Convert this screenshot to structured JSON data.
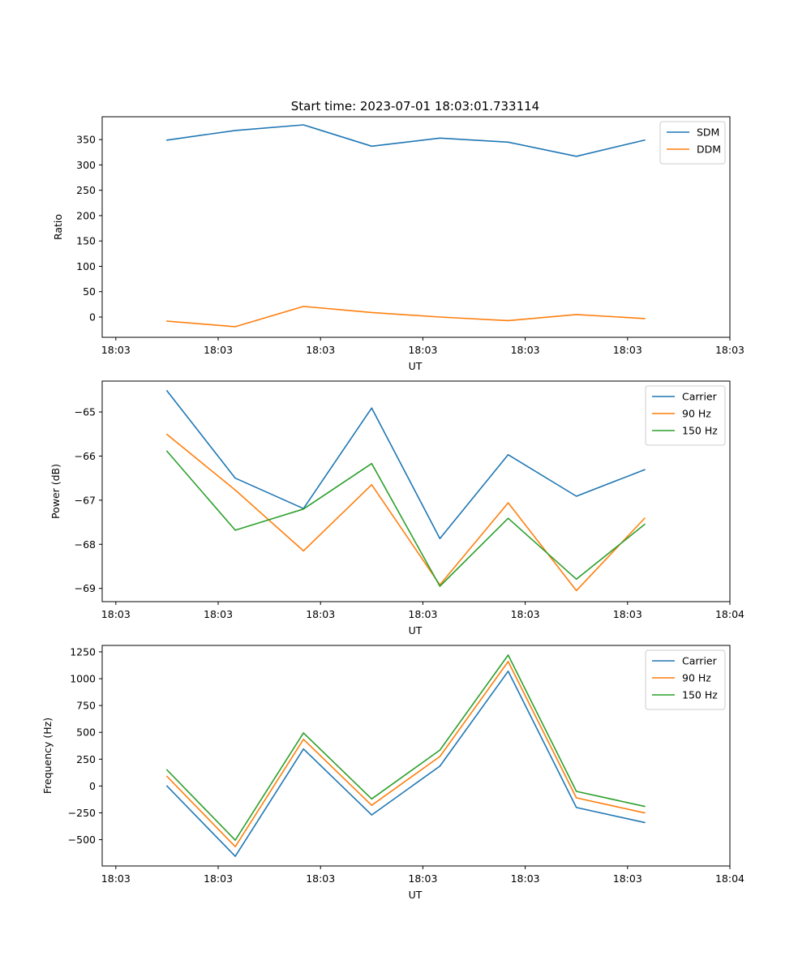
{
  "figure": {
    "title": "Start time: 2023-07-01 18:03:01.733114"
  },
  "colors": {
    "blue": "#1f77b4",
    "orange": "#ff7f0e",
    "green": "#2ca02c"
  },
  "chart_data": [
    {
      "type": "line",
      "xlabel": "UT",
      "ylabel": "Ratio",
      "xlim": [
        -0.2,
        9.0
      ],
      "ylim": [
        -40,
        395
      ],
      "x": [
        0.75,
        1.75,
        2.75,
        3.75,
        4.75,
        5.75,
        6.75,
        7.75
      ],
      "xticks": [
        0,
        1.5,
        3,
        4.5,
        6,
        7.5,
        9
      ],
      "xtick_labels": [
        "18:03",
        "18:03",
        "18:03",
        "18:03",
        "18:03",
        "18:03",
        "18:03"
      ],
      "yticks": [
        0,
        50,
        100,
        150,
        200,
        250,
        300,
        350
      ],
      "ytick_labels": [
        "0",
        "50",
        "100",
        "150",
        "200",
        "250",
        "300",
        "350"
      ],
      "legend": "top-right",
      "series": [
        {
          "name": "SDM",
          "color": "blue",
          "values": [
            349,
            368,
            379,
            337,
            353,
            345,
            317,
            349
          ]
        },
        {
          "name": "DDM",
          "color": "orange",
          "values": [
            -8,
            -19,
            21,
            9,
            0,
            -7,
            5,
            -3
          ]
        }
      ]
    },
    {
      "type": "line",
      "xlabel": "UT",
      "ylabel": "Power (dB)",
      "xlim": [
        -0.2,
        9.0
      ],
      "ylim": [
        -69.3,
        -64.3
      ],
      "x": [
        0.75,
        1.75,
        2.75,
        3.75,
        4.75,
        5.75,
        6.75,
        7.75
      ],
      "xticks": [
        0,
        1.5,
        3,
        4.5,
        6,
        7.5,
        9
      ],
      "xtick_labels": [
        "18:03",
        "18:03",
        "18:03",
        "18:03",
        "18:03",
        "18:03",
        "18:04"
      ],
      "yticks": [
        -69,
        -68,
        -67,
        -66,
        -65
      ],
      "ytick_labels": [
        "−69",
        "−68",
        "−67",
        "−66",
        "−65"
      ],
      "legend": "top-right",
      "series": [
        {
          "name": "Carrier",
          "color": "blue",
          "values": [
            -64.52,
            -66.5,
            -67.19,
            -64.91,
            -67.87,
            -65.97,
            -66.91,
            -66.31
          ]
        },
        {
          "name": "90 Hz",
          "color": "orange",
          "values": [
            -65.51,
            -66.77,
            -68.15,
            -66.65,
            -68.92,
            -67.06,
            -69.05,
            -67.41
          ]
        },
        {
          "name": "150 Hz",
          "color": "green",
          "values": [
            -65.89,
            -67.68,
            -67.2,
            -66.17,
            -68.95,
            -67.41,
            -68.79,
            -67.55
          ]
        }
      ]
    },
    {
      "type": "line",
      "xlabel": "UT",
      "ylabel": "Frequency (Hz)",
      "xlim": [
        -0.2,
        9.0
      ],
      "ylim": [
        -745,
        1310
      ],
      "x": [
        0.75,
        1.75,
        2.75,
        3.75,
        4.75,
        5.75,
        6.75,
        7.75
      ],
      "xticks": [
        0,
        1.5,
        3,
        4.5,
        6,
        7.5,
        9
      ],
      "xtick_labels": [
        "18:03",
        "18:03",
        "18:03",
        "18:03",
        "18:03",
        "18:03",
        "18:04"
      ],
      "yticks": [
        -500,
        -250,
        0,
        250,
        500,
        750,
        1000,
        1250
      ],
      "ytick_labels": [
        "−500",
        "−250",
        "0",
        "250",
        "500",
        "750",
        "1000",
        "1250"
      ],
      "legend": "top-right",
      "series": [
        {
          "name": "Carrier",
          "color": "blue",
          "values": [
            0,
            -655,
            345,
            -270,
            185,
            1070,
            -200,
            -340
          ]
        },
        {
          "name": "90 Hz",
          "color": "orange",
          "values": [
            90,
            -565,
            435,
            -180,
            275,
            1160,
            -110,
            -250
          ]
        },
        {
          "name": "150 Hz",
          "color": "green",
          "values": [
            150,
            -505,
            495,
            -120,
            335,
            1220,
            -50,
            -190
          ]
        }
      ]
    }
  ]
}
